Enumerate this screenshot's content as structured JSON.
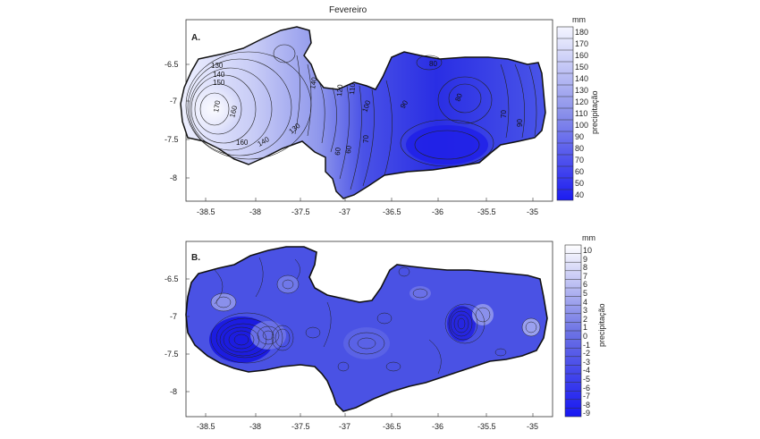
{
  "title": "Fevereiro",
  "panels": [
    {
      "label": "A.",
      "unit": "mm",
      "legend_title": "precipitação",
      "colors": [
        "#2222ee",
        "#e8ecff"
      ],
      "lat_ticks": [
        "-6.5",
        "-7",
        "-7.5",
        "-8"
      ],
      "lon_ticks": [
        "-38.5",
        "-38",
        "-37.5",
        "-37",
        "-36.5",
        "-36",
        "-35.5",
        "-35"
      ],
      "legend_values": [
        "180",
        "170",
        "160",
        "150",
        "140",
        "130",
        "120",
        "110",
        "100",
        "90",
        "80",
        "70",
        "60",
        "50",
        "40"
      ],
      "contour_labels": [
        "130",
        "140",
        "150",
        "170",
        "160",
        "160",
        "140",
        "130",
        "140",
        "120",
        "110",
        "100",
        "90",
        "80",
        "80",
        "70",
        "60",
        "60",
        "70",
        "90"
      ]
    },
    {
      "label": "B.",
      "unit": "mm",
      "legend_title": "precipitação",
      "colors": [
        "#2a2ae8",
        "#ffffff"
      ],
      "lat_ticks": [
        "-6.5",
        "-7",
        "-7.5",
        "-8"
      ],
      "lon_ticks": [
        "-38.5",
        "-38",
        "-37.5",
        "-37",
        "-36.5",
        "-36",
        "-35.5",
        "-35"
      ],
      "legend_values": [
        "10",
        "9",
        "8",
        "7",
        "6",
        "5",
        "4",
        "3",
        "2",
        "1",
        "0",
        "-1",
        "-2",
        "-3",
        "-4",
        "-5",
        "-6",
        "-7",
        "-8",
        "-9"
      ]
    }
  ]
}
